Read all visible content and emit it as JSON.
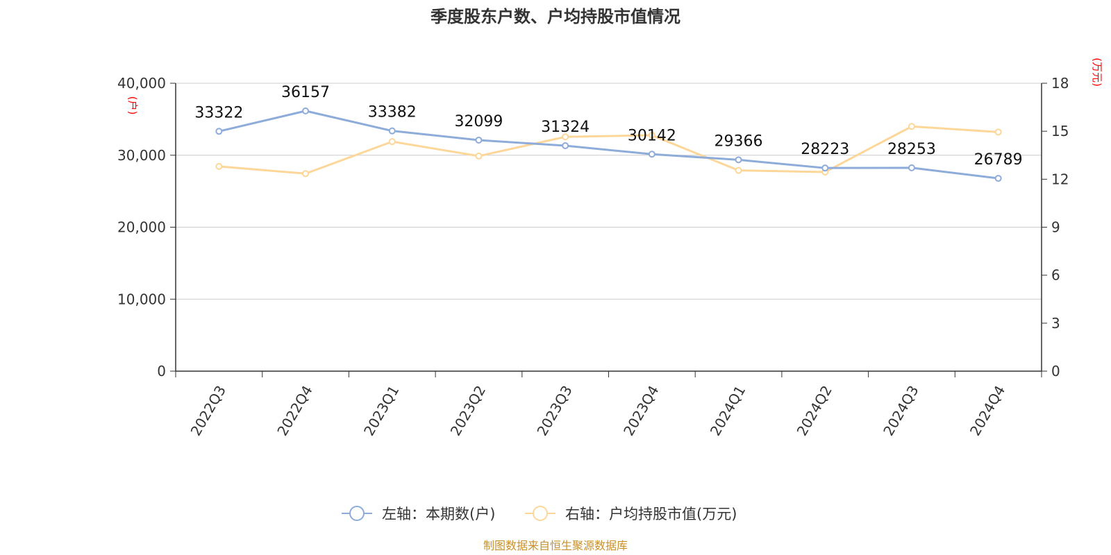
{
  "chart_data": {
    "type": "line",
    "title": "季度股东户数、户均持股市值情况",
    "categories": [
      "2022Q3",
      "2022Q4",
      "2023Q1",
      "2023Q2",
      "2023Q3",
      "2023Q4",
      "2024Q1",
      "2024Q2",
      "2024Q3",
      "2024Q4"
    ],
    "left_axis": {
      "unit": "(户)",
      "range": [
        0,
        40000
      ],
      "ticks": [
        "0",
        "10,000",
        "20,000",
        "30,000",
        "40,000"
      ]
    },
    "right_axis": {
      "unit": "(万元)",
      "range": [
        0,
        18
      ],
      "ticks": [
        "0",
        "3",
        "6",
        "9",
        "12",
        "15",
        "18"
      ]
    },
    "series": [
      {
        "name": "左轴：本期数(户)",
        "axis": "left",
        "color": "#8eacd9",
        "values": [
          33322,
          36157,
          33382,
          32099,
          31324,
          30142,
          29366,
          28223,
          28253,
          26789
        ],
        "labels": [
          "33322",
          "36157",
          "33382",
          "32099",
          "31324",
          "30142",
          "29366",
          "28223",
          "28253",
          "26789"
        ]
      },
      {
        "name": "右轴：户均持股市值(万元)",
        "axis": "right",
        "color": "#fdd799",
        "values": [
          12.8,
          12.35,
          14.35,
          13.45,
          14.65,
          14.75,
          12.55,
          12.45,
          15.3,
          14.95
        ]
      }
    ],
    "grid": true,
    "legend_position": "bottom"
  },
  "source": "制图数据来自恒生聚源数据库"
}
